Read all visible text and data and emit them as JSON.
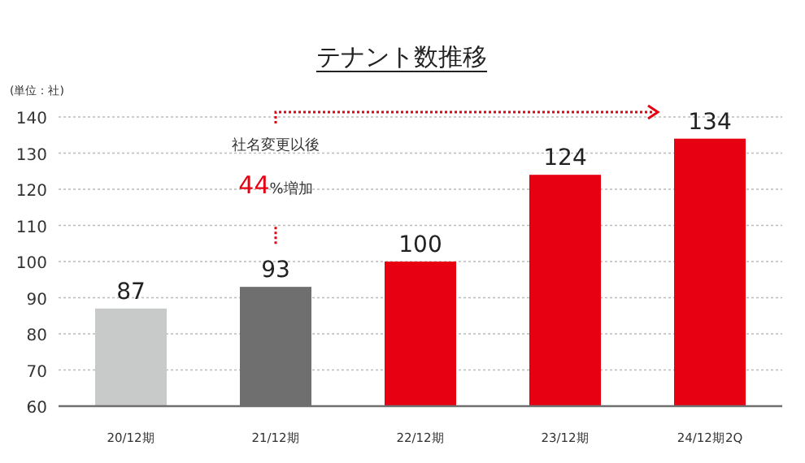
{
  "chart_data": {
    "type": "bar",
    "title": "テナント数推移",
    "ylabel": "(単位：社)",
    "categories": [
      "20/12期",
      "21/12期",
      "22/12期",
      "23/12期",
      "24/12期2Q"
    ],
    "values": [
      87,
      93,
      100,
      124,
      134
    ],
    "colors": [
      "#c8c9c9",
      "#6f6f6f",
      "#e60012",
      "#e60012",
      "#e60012"
    ],
    "ylim": [
      60,
      140
    ],
    "yticks": [
      60,
      70,
      80,
      90,
      100,
      110,
      120,
      130,
      140
    ],
    "grid": "y",
    "data_labels": true,
    "annotations": [
      "社名変更以後",
      "**44**%増加"
    ]
  }
}
